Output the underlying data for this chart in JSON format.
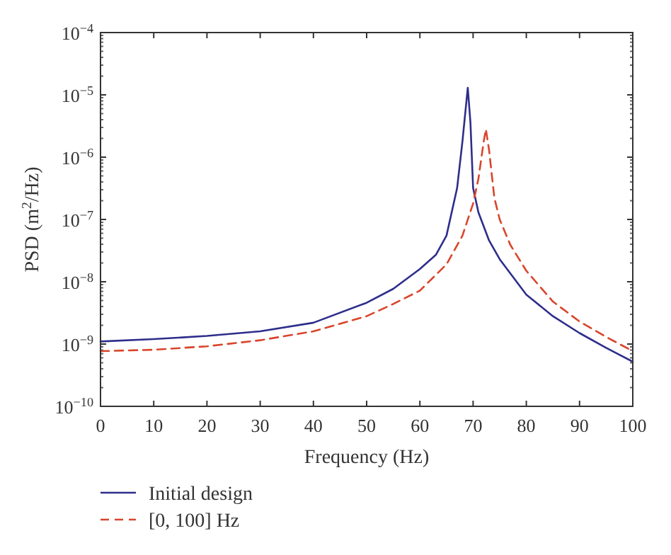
{
  "chart_data": {
    "type": "line",
    "xlabel": "Frequency (Hz)",
    "ylabel": "PSD (m$^{2}$/Hz)",
    "log": "y",
    "xlim": [
      0,
      100
    ],
    "xticks": [
      0,
      10,
      20,
      30,
      40,
      50,
      60,
      70,
      80,
      90,
      100
    ],
    "ylim": [
      1e-10,
      0.0001
    ],
    "yticks": [
      {
        "value": 1e-10,
        "label": "10$^{−10}$"
      },
      {
        "value": 1e-09,
        "label": "10$^{−9}$"
      },
      {
        "value": 1e-08,
        "label": "10$^{−8}$"
      },
      {
        "value": 1e-07,
        "label": "10$^{−7}$"
      },
      {
        "value": 1e-06,
        "label": "10$^{−6}$"
      },
      {
        "value": 1e-05,
        "label": "10$^{−5}$"
      },
      {
        "value": 0.0001,
        "label": "10$^{−4}$"
      }
    ],
    "grid": false,
    "legend": "bottom",
    "marker": "none",
    "series": [
      {
        "name": "Initial design",
        "color": "#2e2e8c",
        "line_style": "solid",
        "x": [
          0,
          10,
          20,
          30,
          40,
          50,
          55,
          60,
          63,
          65,
          67,
          68,
          69,
          69.5,
          70,
          71,
          73,
          75,
          80,
          85,
          90,
          95,
          100
        ],
        "values": [
          1.1e-09,
          1.2e-09,
          1.35e-09,
          1.6e-09,
          2.2e-09,
          4.6e-09,
          7.7e-09,
          1.6e-08,
          2.7e-08,
          5.5e-08,
          3.2e-07,
          1.8e-06,
          1.3e-05,
          3.6e-06,
          3.2e-07,
          1.3e-07,
          4.6e-08,
          2.3e-08,
          6.2e-09,
          2.8e-09,
          1.5e-09,
          8.7e-10,
          5.2e-10
        ]
      },
      {
        "name": "[0, 100] Hz",
        "color": "#d9452b",
        "line_style": "dashed",
        "x": [
          0,
          10,
          20,
          30,
          40,
          50,
          55,
          60,
          65,
          68,
          70,
          71,
          72,
          72.4,
          73,
          74,
          75,
          77,
          80,
          85,
          90,
          95,
          100
        ],
        "values": [
          7.7e-10,
          8.1e-10,
          9.2e-10,
          1.15e-09,
          1.6e-09,
          2.8e-09,
          4.4e-09,
          7.2e-09,
          1.9e-08,
          5.5e-08,
          1.8e-07,
          4.5e-07,
          1.8e-06,
          2.8e-06,
          1.3e-06,
          2.2e-07,
          1e-07,
          3.9e-08,
          1.5e-08,
          4.8e-09,
          2.3e-09,
          1.3e-09,
          7.7e-10
        ]
      }
    ]
  }
}
